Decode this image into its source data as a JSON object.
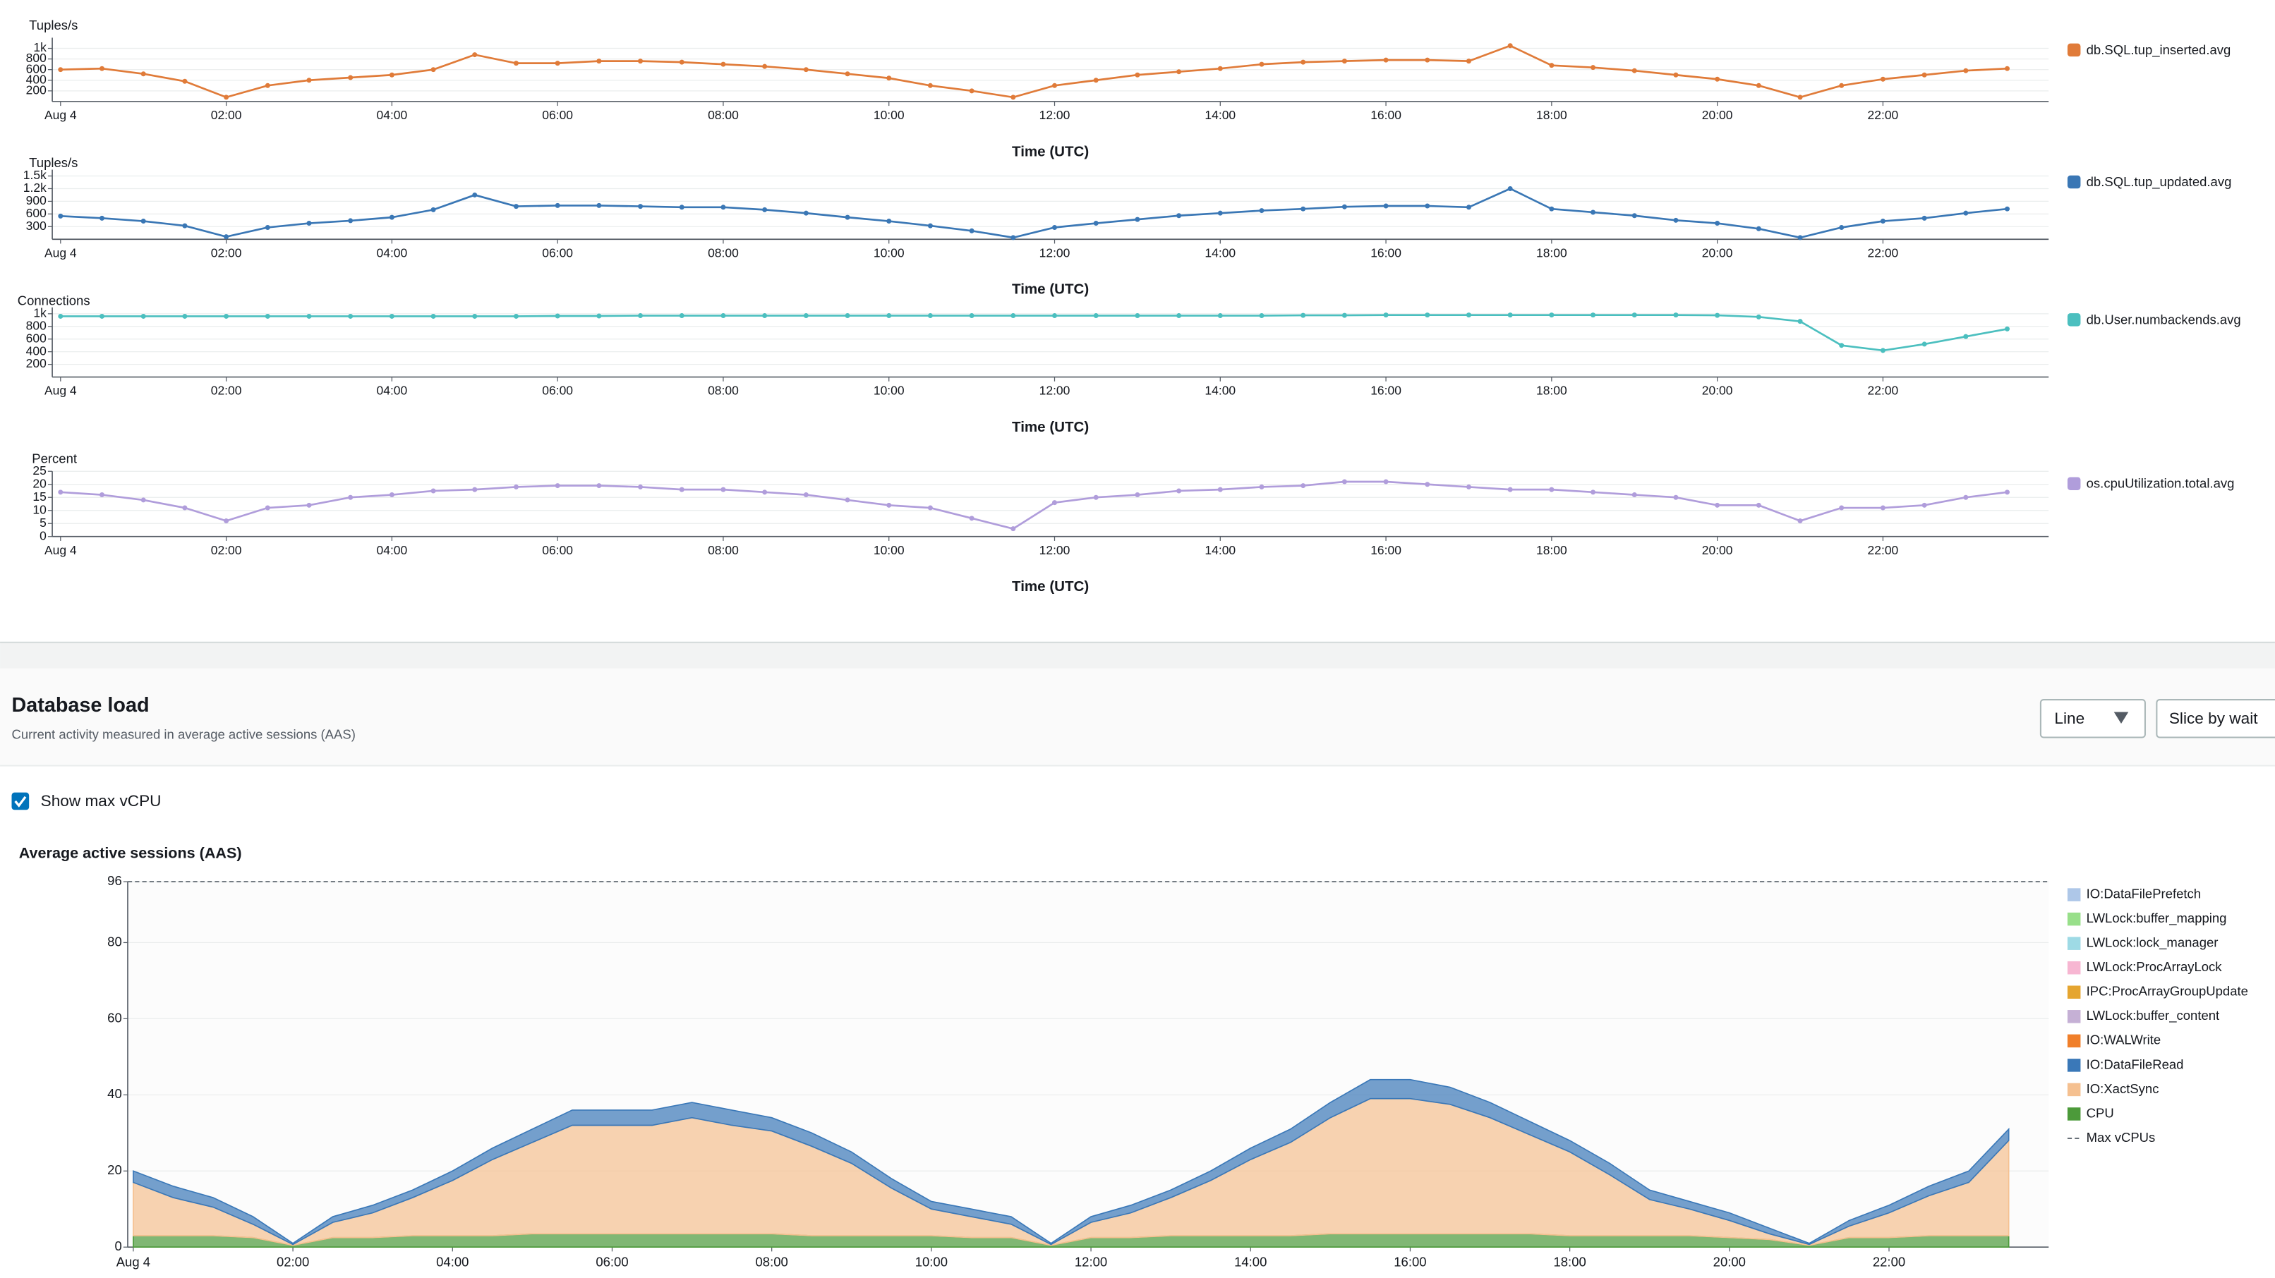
{
  "chart_data": [
    {
      "type": "line",
      "ylabel": "Tuples/s",
      "xlabel": "Time (UTC)",
      "x": [
        0,
        0.5,
        1,
        1.5,
        2,
        2.5,
        3,
        3.5,
        4,
        4.5,
        5,
        5.5,
        6,
        6.5,
        7,
        7.5,
        8,
        8.5,
        9,
        9.5,
        10,
        10.5,
        11,
        11.5,
        12,
        12.5,
        13,
        13.5,
        14,
        14.5,
        15,
        15.5,
        16,
        16.5,
        17,
        17.5,
        18,
        18.5,
        19,
        19.5,
        20,
        20.5,
        21,
        21.5,
        22,
        22.5,
        23,
        23.5
      ],
      "series": [
        {
          "name": "db.SQL.tup_inserted.avg",
          "color": "#e07b39",
          "values": [
            600,
            620,
            520,
            380,
            80,
            300,
            400,
            450,
            500,
            600,
            880,
            720,
            720,
            760,
            760,
            740,
            700,
            660,
            600,
            520,
            440,
            300,
            200,
            80,
            300,
            400,
            500,
            560,
            620,
            700,
            740,
            760,
            780,
            780,
            760,
            1050,
            680,
            640,
            580,
            500,
            420,
            300,
            80,
            300,
            420,
            500,
            580,
            620
          ]
        }
      ],
      "xlim": [
        -0.1,
        24
      ],
      "ylim": [
        0,
        1200
      ],
      "xticks": [
        {
          "value": 0,
          "label": "Aug 4"
        },
        {
          "value": 2,
          "label": "02:00"
        },
        {
          "value": 4,
          "label": "04:00"
        },
        {
          "value": 6,
          "label": "06:00"
        },
        {
          "value": 8,
          "label": "08:00"
        },
        {
          "value": 10,
          "label": "10:00"
        },
        {
          "value": 12,
          "label": "12:00"
        },
        {
          "value": 14,
          "label": "14:00"
        },
        {
          "value": 16,
          "label": "16:00"
        },
        {
          "value": 18,
          "label": "18:00"
        },
        {
          "value": 20,
          "label": "20:00"
        },
        {
          "value": 22,
          "label": "22:00"
        }
      ],
      "yticks": [
        200,
        400,
        600,
        800,
        {
          "value": 1000,
          "label": "1k"
        }
      ],
      "grid": true
    },
    {
      "type": "line",
      "ylabel": "Tuples/s",
      "xlabel": "Time (UTC)",
      "x": [
        0,
        0.5,
        1,
        1.5,
        2,
        2.5,
        3,
        3.5,
        4,
        4.5,
        5,
        5.5,
        6,
        6.5,
        7,
        7.5,
        8,
        8.5,
        9,
        9.5,
        10,
        10.5,
        11,
        11.5,
        12,
        12.5,
        13,
        13.5,
        14,
        14.5,
        15,
        15.5,
        16,
        16.5,
        17,
        17.5,
        18,
        18.5,
        19,
        19.5,
        20,
        20.5,
        21,
        21.5,
        22,
        22.5,
        23,
        23.5
      ],
      "series": [
        {
          "name": "db.SQL.tup_updated.avg",
          "color": "#3a77b5",
          "values": [
            550,
            500,
            430,
            320,
            60,
            280,
            380,
            440,
            520,
            700,
            1050,
            780,
            800,
            800,
            780,
            760,
            760,
            700,
            620,
            520,
            430,
            320,
            200,
            40,
            280,
            380,
            470,
            560,
            620,
            680,
            720,
            770,
            790,
            790,
            760,
            1200,
            720,
            640,
            560,
            450,
            380,
            250,
            40,
            280,
            430,
            500,
            620,
            720
          ]
        }
      ],
      "xlim": [
        -0.1,
        24
      ],
      "ylim": [
        0,
        1650
      ],
      "xticks": [
        {
          "value": 0,
          "label": "Aug 4"
        },
        {
          "value": 2,
          "label": "02:00"
        },
        {
          "value": 4,
          "label": "04:00"
        },
        {
          "value": 6,
          "label": "06:00"
        },
        {
          "value": 8,
          "label": "08:00"
        },
        {
          "value": 10,
          "label": "10:00"
        },
        {
          "value": 12,
          "label": "12:00"
        },
        {
          "value": 14,
          "label": "14:00"
        },
        {
          "value": 16,
          "label": "16:00"
        },
        {
          "value": 18,
          "label": "18:00"
        },
        {
          "value": 20,
          "label": "20:00"
        },
        {
          "value": 22,
          "label": "22:00"
        }
      ],
      "yticks": [
        300,
        600,
        900,
        {
          "value": 1200,
          "label": "1.2k"
        },
        {
          "value": 1500,
          "label": "1.5k"
        }
      ],
      "grid": true
    },
    {
      "type": "line",
      "ylabel": "Connections",
      "xlabel": "Time (UTC)",
      "x": [
        0,
        0.5,
        1,
        1.5,
        2,
        2.5,
        3,
        3.5,
        4,
        4.5,
        5,
        5.5,
        6,
        6.5,
        7,
        7.5,
        8,
        8.5,
        9,
        9.5,
        10,
        10.5,
        11,
        11.5,
        12,
        12.5,
        13,
        13.5,
        14,
        14.5,
        15,
        15.5,
        16,
        16.5,
        17,
        17.5,
        18,
        18.5,
        19,
        19.5,
        20,
        20.5,
        21,
        21.5,
        22,
        22.5,
        23,
        23.5
      ],
      "series": [
        {
          "name": "db.User.numbackends.avg",
          "color": "#4bbfbf",
          "values": [
            960,
            960,
            960,
            960,
            960,
            960,
            960,
            960,
            960,
            960,
            960,
            960,
            965,
            965,
            970,
            970,
            970,
            970,
            970,
            970,
            970,
            970,
            970,
            970,
            970,
            970,
            970,
            970,
            970,
            970,
            975,
            975,
            980,
            980,
            980,
            980,
            980,
            980,
            980,
            980,
            975,
            950,
            880,
            500,
            420,
            520,
            640,
            760
          ]
        }
      ],
      "xlim": [
        -0.1,
        24
      ],
      "ylim": [
        0,
        1100
      ],
      "xticks": [
        {
          "value": 0,
          "label": "Aug 4"
        },
        {
          "value": 2,
          "label": "02:00"
        },
        {
          "value": 4,
          "label": "04:00"
        },
        {
          "value": 6,
          "label": "06:00"
        },
        {
          "value": 8,
          "label": "08:00"
        },
        {
          "value": 10,
          "label": "10:00"
        },
        {
          "value": 12,
          "label": "12:00"
        },
        {
          "value": 14,
          "label": "14:00"
        },
        {
          "value": 16,
          "label": "16:00"
        },
        {
          "value": 18,
          "label": "18:00"
        },
        {
          "value": 20,
          "label": "20:00"
        },
        {
          "value": 22,
          "label": "22:00"
        }
      ],
      "yticks": [
        200,
        400,
        600,
        800,
        {
          "value": 1000,
          "label": "1k"
        }
      ],
      "grid": true
    },
    {
      "type": "line",
      "ylabel": "Percent",
      "xlabel": "Time (UTC)",
      "x": [
        0,
        0.5,
        1,
        1.5,
        2,
        2.5,
        3,
        3.5,
        4,
        4.5,
        5,
        5.5,
        6,
        6.5,
        7,
        7.5,
        8,
        8.5,
        9,
        9.5,
        10,
        10.5,
        11,
        11.5,
        12,
        12.5,
        13,
        13.5,
        14,
        14.5,
        15,
        15.5,
        16,
        16.5,
        17,
        17.5,
        18,
        18.5,
        19,
        19.5,
        20,
        20.5,
        21,
        21.5,
        22,
        22.5,
        23,
        23.5
      ],
      "series": [
        {
          "name": "os.cpuUtilization.total.avg",
          "color": "#b09ddb",
          "values": [
            17,
            16,
            14,
            11,
            6,
            11,
            12,
            15,
            16,
            17.5,
            18,
            19,
            19.5,
            19.5,
            19,
            18,
            18,
            17,
            16,
            14,
            12,
            11,
            7,
            3,
            13,
            15,
            16,
            17.5,
            18,
            19,
            19.5,
            21,
            21,
            20,
            19,
            18,
            18,
            17,
            16,
            15,
            12,
            12,
            6,
            11,
            11,
            12,
            15,
            17
          ]
        }
      ],
      "xlim": [
        -0.1,
        24
      ],
      "ylim": [
        0,
        25
      ],
      "xticks": [
        {
          "value": 0,
          "label": "Aug 4"
        },
        {
          "value": 2,
          "label": "02:00"
        },
        {
          "value": 4,
          "label": "04:00"
        },
        {
          "value": 6,
          "label": "06:00"
        },
        {
          "value": 8,
          "label": "08:00"
        },
        {
          "value": 10,
          "label": "10:00"
        },
        {
          "value": 12,
          "label": "12:00"
        },
        {
          "value": 14,
          "label": "14:00"
        },
        {
          "value": 16,
          "label": "16:00"
        },
        {
          "value": 18,
          "label": "18:00"
        },
        {
          "value": 20,
          "label": "20:00"
        },
        {
          "value": 22,
          "label": "22:00"
        }
      ],
      "yticks": [
        0,
        5,
        10,
        15,
        20,
        25
      ],
      "grid": true
    },
    {
      "type": "stacked_area",
      "title": "Average active sessions (AAS)",
      "x": [
        0,
        0.5,
        1,
        1.5,
        2,
        2.5,
        3,
        3.5,
        4,
        4.5,
        5,
        5.5,
        6,
        6.5,
        7,
        7.5,
        8,
        8.5,
        9,
        9.5,
        10,
        10.5,
        11,
        11.5,
        12,
        12.5,
        13,
        13.5,
        14,
        14.5,
        15,
        15.5,
        16,
        16.5,
        17,
        17.5,
        18,
        18.5,
        19,
        19.5,
        20,
        20.5,
        21,
        21.5,
        22,
        22.5,
        23,
        23.5
      ],
      "series": [
        {
          "name": "IO:DataFilePrefetch",
          "color": "#aec7e8"
        },
        {
          "name": "LWLock:buffer_mapping",
          "color": "#98df8a"
        },
        {
          "name": "LWLock:lock_manager",
          "color": "#9edae5"
        },
        {
          "name": "LWLock:ProcArrayLock",
          "color": "#f7b6d2"
        },
        {
          "name": "IPC:ProcArrayGroupUpdate",
          "color": "#e5a530"
        },
        {
          "name": "LWLock:buffer_content",
          "color": "#c5b0d5"
        },
        {
          "name": "IO:WALWrite",
          "color": "#f07f2a"
        },
        {
          "name": "IO:DataFileRead",
          "color": "#3a78b8",
          "values": [
            3,
            3,
            2.5,
            2,
            0.3,
            1.5,
            2,
            2,
            2.5,
            3,
            3.5,
            4,
            4,
            4,
            4,
            4,
            3.5,
            3.5,
            3,
            2.5,
            2,
            2,
            2,
            0.3,
            1.5,
            2,
            2,
            2.5,
            3,
            3.5,
            4,
            5,
            5,
            4.5,
            4,
            3.5,
            3,
            3,
            2.5,
            2,
            2,
            1.5,
            0.3,
            1.5,
            2,
            2.5,
            3,
            3
          ]
        },
        {
          "name": "IO:XactSync",
          "color": "#f5c090",
          "values": [
            14,
            10,
            7.5,
            3.5,
            0.2,
            4,
            6.5,
            10,
            14.5,
            20,
            24,
            28.5,
            28.5,
            28.5,
            30.5,
            28.5,
            27,
            23.5,
            19,
            12.5,
            7,
            5.5,
            3.5,
            0.2,
            4,
            6.5,
            10,
            14.5,
            20,
            24.5,
            30.5,
            35.5,
            35.5,
            34,
            30.5,
            26,
            22,
            16,
            9.5,
            7,
            4.5,
            1.5,
            0.2,
            3,
            6.5,
            10.5,
            14,
            25
          ]
        },
        {
          "name": "CPU",
          "color": "#4c9a3a",
          "values": [
            3,
            3,
            3,
            2.5,
            0.5,
            2.5,
            2.5,
            3,
            3,
            3,
            3.5,
            3.5,
            3.5,
            3.5,
            3.5,
            3.5,
            3.5,
            3,
            3,
            3,
            3,
            2.5,
            2.5,
            0.5,
            2.5,
            2.5,
            3,
            3,
            3,
            3,
            3.5,
            3.5,
            3.5,
            3.5,
            3.5,
            3.5,
            3,
            3,
            3,
            3,
            2.5,
            2,
            0.5,
            2.5,
            2.5,
            3,
            3,
            3
          ]
        }
      ],
      "reference_line": {
        "name": "Max vCPUs",
        "value": 96
      },
      "xlim": [
        -0.07,
        24
      ],
      "ylim": [
        0,
        96
      ],
      "xticks": [
        {
          "value": 0,
          "label": "Aug 4"
        },
        {
          "value": 2,
          "label": "02:00"
        },
        {
          "value": 4,
          "label": "04:00"
        },
        {
          "value": 6,
          "label": "06:00"
        },
        {
          "value": 8,
          "label": "08:00"
        },
        {
          "value": 10,
          "label": "10:00"
        },
        {
          "value": 12,
          "label": "12:00"
        },
        {
          "value": 14,
          "label": "14:00"
        },
        {
          "value": 16,
          "label": "16:00"
        },
        {
          "value": 18,
          "label": "18:00"
        },
        {
          "value": 20,
          "label": "20:00"
        },
        {
          "value": 22,
          "label": "22:00"
        }
      ],
      "yticks": [
        0,
        20,
        40,
        60,
        80,
        96
      ],
      "grid": true
    }
  ],
  "panel": {
    "title": "Database load",
    "subtitle": "Current activity measured in average active sessions (AAS)",
    "view_select": "Line",
    "slice_button": "Slice by wait",
    "checkbox_label": "Show max vCPU"
  }
}
